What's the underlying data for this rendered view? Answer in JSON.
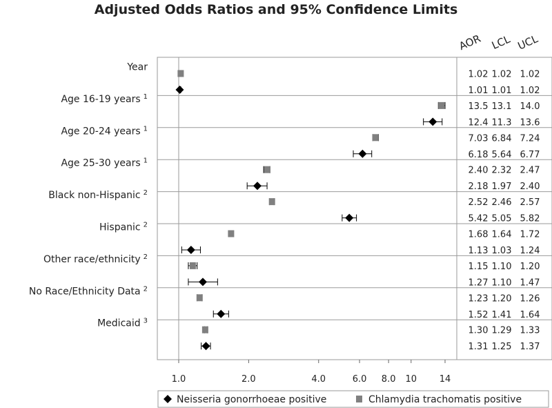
{
  "chart_data": {
    "type": "scatter",
    "title": "Adjusted Odds Ratios and 95% Confidence Limits",
    "x_scale": "log",
    "xlim": [
      0.72,
      15.5
    ],
    "x_ticks": [
      1.0,
      2.0,
      4.0,
      6.0,
      8.0,
      10,
      14
    ],
    "x_tick_labels": [
      "1.0",
      "2.0",
      "4.0",
      "6.0",
      "8.0",
      "10",
      "14"
    ],
    "reference_line": 1.0,
    "table_headers": [
      "AOR",
      "LCL",
      "UCL"
    ],
    "legend_position": "bottom",
    "series": [
      {
        "name": "Neisseria gonorrhoeae positive",
        "marker": "diamond",
        "color": "#000000"
      },
      {
        "name": "Chlamydia trachomatis positive",
        "marker": "square",
        "color": "#808080"
      }
    ],
    "groups": [
      {
        "label": "Year",
        "superscript": "",
        "chlamydia": {
          "aor": 1.02,
          "lcl": 1.02,
          "ucl": 1.02,
          "text": [
            "1.02",
            "1.02",
            "1.02"
          ]
        },
        "gonorrhea": {
          "aor": 1.01,
          "lcl": 1.01,
          "ucl": 1.02,
          "text": [
            "1.01",
            "1.01",
            "1.02"
          ]
        }
      },
      {
        "label": "Age 16-19 years",
        "superscript": "1",
        "chlamydia": {
          "aor": 13.5,
          "lcl": 13.1,
          "ucl": 14.0,
          "text": [
            "13.5",
            "13.1",
            "14.0"
          ]
        },
        "gonorrhea": {
          "aor": 12.4,
          "lcl": 11.3,
          "ucl": 13.6,
          "text": [
            "12.4",
            "11.3",
            "13.6"
          ]
        }
      },
      {
        "label": "Age 20-24 years",
        "superscript": "1",
        "chlamydia": {
          "aor": 7.03,
          "lcl": 6.84,
          "ucl": 7.24,
          "text": [
            "7.03",
            "6.84",
            "7.24"
          ]
        },
        "gonorrhea": {
          "aor": 6.18,
          "lcl": 5.64,
          "ucl": 6.77,
          "text": [
            "6.18",
            "5.64",
            "6.77"
          ]
        }
      },
      {
        "label": "Age 25-30 years",
        "superscript": "1",
        "chlamydia": {
          "aor": 2.4,
          "lcl": 2.32,
          "ucl": 2.47,
          "text": [
            "2.40",
            "2.32",
            "2.47"
          ]
        },
        "gonorrhea": {
          "aor": 2.18,
          "lcl": 1.97,
          "ucl": 2.4,
          "text": [
            "2.18",
            "1.97",
            "2.40"
          ]
        }
      },
      {
        "label": "Black non-Hispanic",
        "superscript": "2",
        "chlamydia": {
          "aor": 2.52,
          "lcl": 2.46,
          "ucl": 2.57,
          "text": [
            "2.52",
            "2.46",
            "2.57"
          ]
        },
        "gonorrhea": {
          "aor": 5.42,
          "lcl": 5.05,
          "ucl": 5.82,
          "text": [
            "5.42",
            "5.05",
            "5.82"
          ]
        }
      },
      {
        "label": "Hispanic",
        "superscript": "2",
        "chlamydia": {
          "aor": 1.68,
          "lcl": 1.64,
          "ucl": 1.72,
          "text": [
            "1.68",
            "1.64",
            "1.72"
          ]
        },
        "gonorrhea": {
          "aor": 1.13,
          "lcl": 1.03,
          "ucl": 1.24,
          "text": [
            "1.13",
            "1.03",
            "1.24"
          ]
        }
      },
      {
        "label": "Other race/ethnicity",
        "superscript": "2",
        "chlamydia": {
          "aor": 1.15,
          "lcl": 1.1,
          "ucl": 1.2,
          "text": [
            "1.15",
            "1.10",
            "1.20"
          ]
        },
        "gonorrhea": {
          "aor": 1.27,
          "lcl": 1.1,
          "ucl": 1.47,
          "text": [
            "1.27",
            "1.10",
            "1.47"
          ]
        }
      },
      {
        "label": "No Race/Ethnicity Data",
        "superscript": "2",
        "chlamydia": {
          "aor": 1.23,
          "lcl": 1.2,
          "ucl": 1.26,
          "text": [
            "1.23",
            "1.20",
            "1.26"
          ]
        },
        "gonorrhea": {
          "aor": 1.52,
          "lcl": 1.41,
          "ucl": 1.64,
          "text": [
            "1.52",
            "1.41",
            "1.64"
          ]
        }
      },
      {
        "label": "Medicaid",
        "superscript": "3",
        "chlamydia": {
          "aor": 1.3,
          "lcl": 1.29,
          "ucl": 1.33,
          "text": [
            "1.30",
            "1.29",
            "1.33"
          ]
        },
        "gonorrhea": {
          "aor": 1.31,
          "lcl": 1.25,
          "ucl": 1.37,
          "text": [
            "1.31",
            "1.25",
            "1.37"
          ]
        }
      }
    ]
  }
}
